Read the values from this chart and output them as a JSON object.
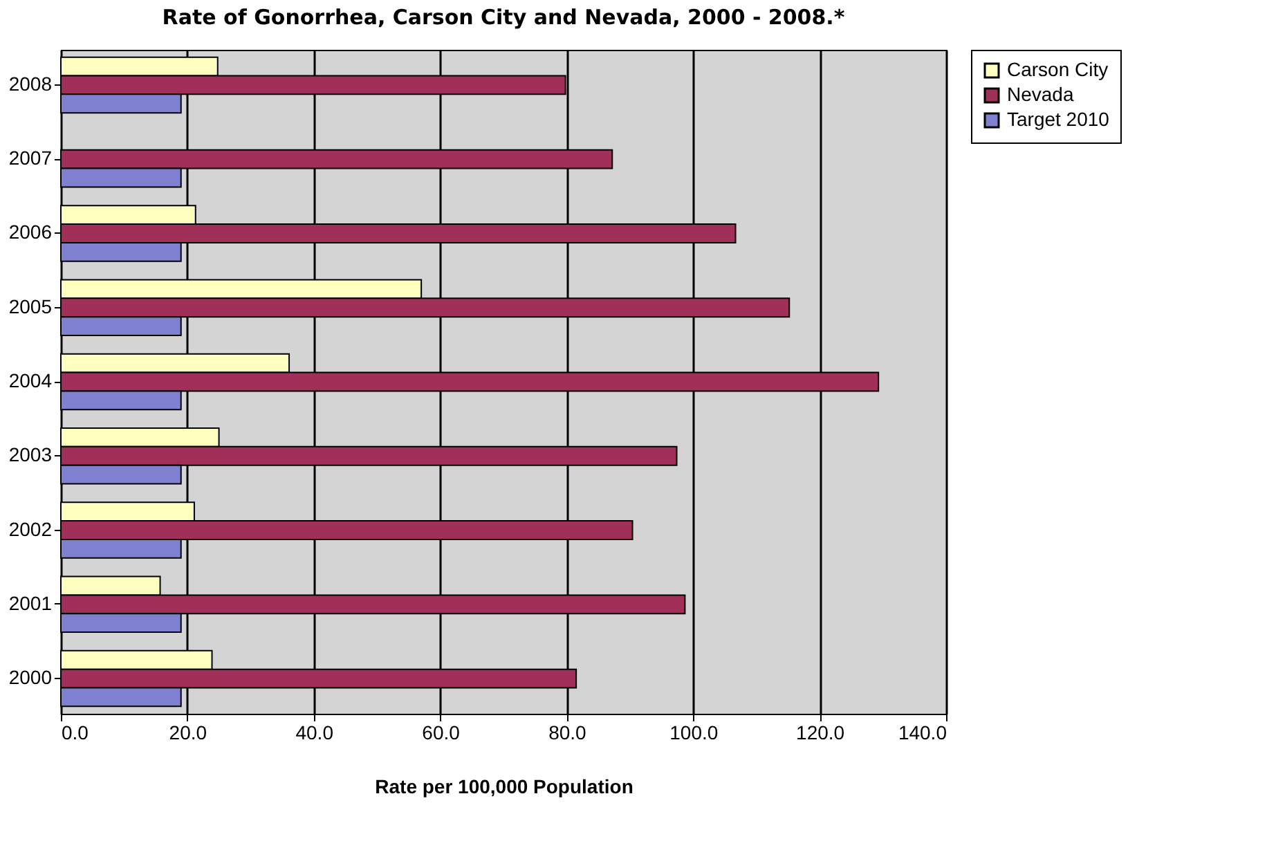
{
  "chart_data": {
    "type": "bar",
    "orientation": "horizontal",
    "title": "Rate of Gonorrhea, Carson City and Nevada, 2000 - 2008.*",
    "xlabel": "Rate per 100,000 Population",
    "categories": [
      "2008",
      "2007",
      "2006",
      "2005",
      "2004",
      "2003",
      "2002",
      "2001",
      "2000"
    ],
    "series": [
      {
        "name": "Carson City",
        "color": "#ffffc0",
        "values": [
          24.8,
          null,
          21.3,
          57.0,
          36.1,
          25.0,
          21.1,
          15.7,
          23.9
        ]
      },
      {
        "name": "Nevada",
        "color": "#a0305a",
        "values": [
          79.8,
          87.2,
          106.7,
          115.2,
          129.3,
          97.4,
          90.4,
          98.7,
          81.5
        ]
      },
      {
        "name": "Target 2010",
        "color": "#8080d0",
        "values": [
          19,
          19,
          19,
          19,
          19,
          19,
          19,
          19,
          19
        ]
      }
    ],
    "xlim": [
      0,
      140
    ],
    "xticks": [
      {
        "value": 0,
        "label": "0.0"
      },
      {
        "value": 20,
        "label": "20.0"
      },
      {
        "value": 40,
        "label": "40.0"
      },
      {
        "value": 60,
        "label": "60.0"
      },
      {
        "value": 80,
        "label": "80.0"
      },
      {
        "value": 100,
        "label": "100.0"
      },
      {
        "value": 120,
        "label": "120.0"
      },
      {
        "value": 140,
        "label": "140.0"
      }
    ],
    "grid": "x",
    "legend": "right"
  }
}
